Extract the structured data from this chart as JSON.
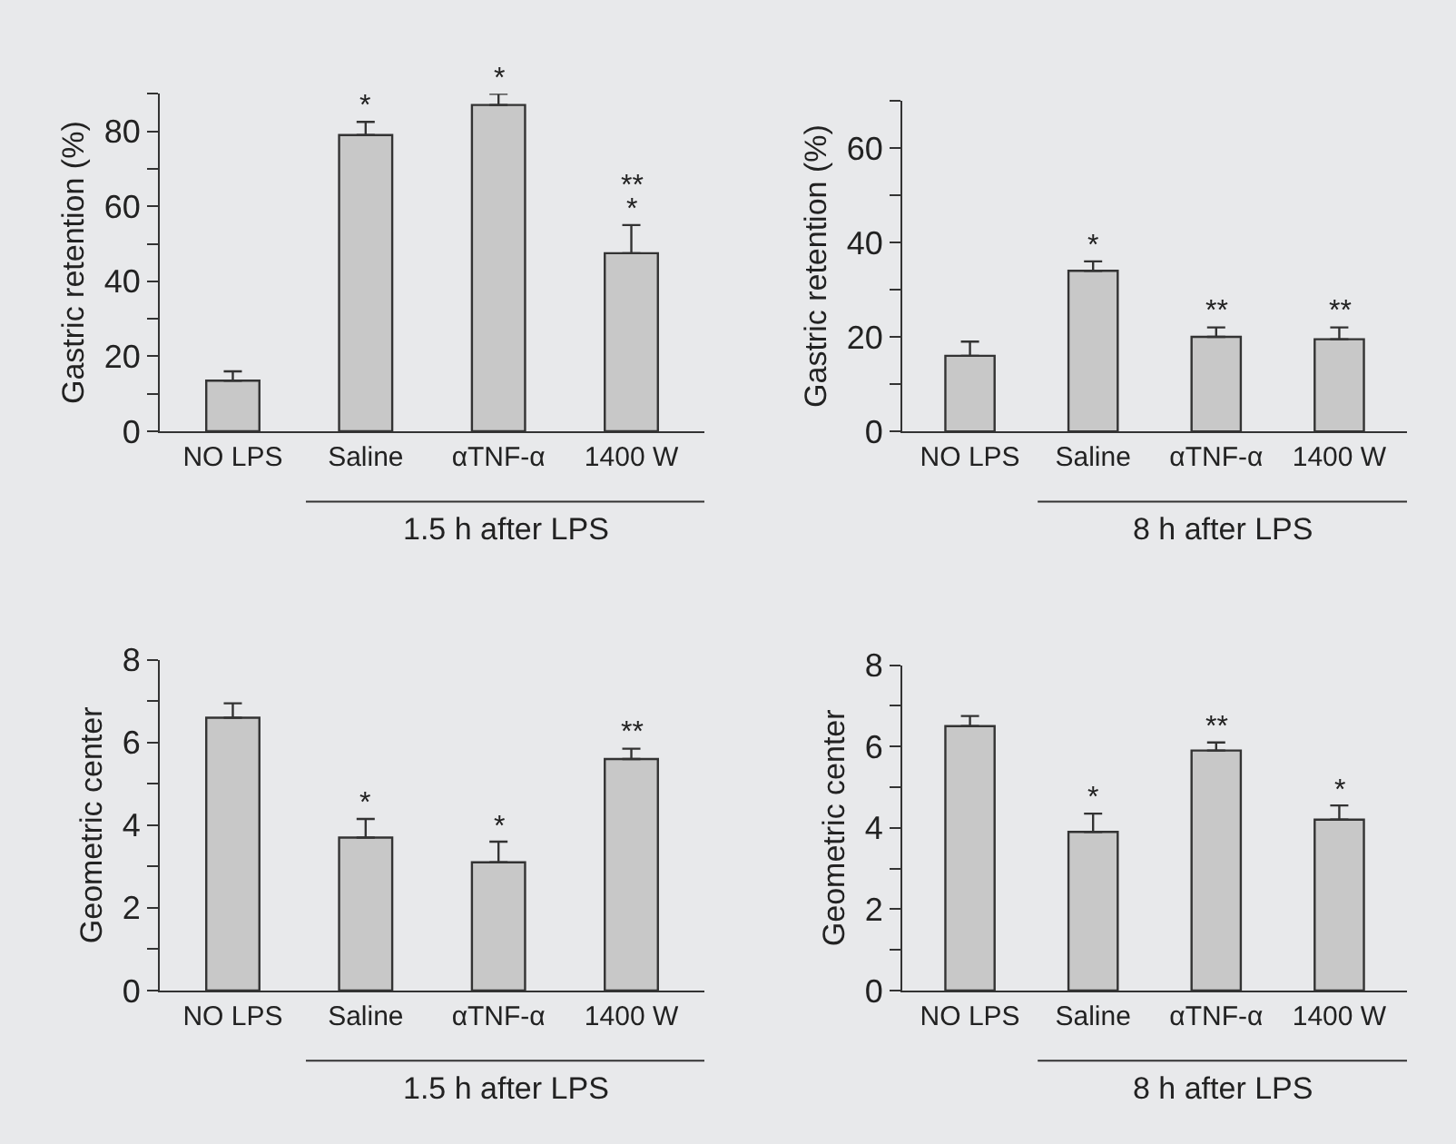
{
  "chart_data": [
    {
      "type": "bar",
      "categories": [
        "NO LPS",
        "Saline",
        "αTNF-α",
        "1400 W"
      ],
      "values": [
        13.5,
        79,
        87,
        47.5
      ],
      "errors": [
        [
          13.5,
          16
        ],
        [
          79,
          82.5
        ],
        [
          87,
          90
        ],
        [
          47.5,
          55
        ]
      ],
      "color": "#c8c8c8",
      "ylabel": "Gastric retention (%)",
      "xlabel": "1.5 h after LPS",
      "ylim": [
        0,
        90
      ],
      "yticks": [
        0,
        {
          "value": 10,
          "label": null
        },
        20,
        {
          "value": 30,
          "label": null
        },
        40,
        {
          "value": 50,
          "label": null
        },
        60,
        {
          "value": 70,
          "label": null
        },
        80,
        {
          "value": 90,
          "label": null
        }
      ],
      "annotations": [
        {
          "text": "*",
          "x": "Saline",
          "y": 82.5
        },
        {
          "text": "*",
          "x": "αTNF-α",
          "y": 90
        },
        {
          "text": "*",
          "x": "1400 W",
          "y": 55
        },
        {
          "text": "**",
          "x": "1400 W",
          "y": 55
        }
      ]
    },
    {
      "type": "bar",
      "categories": [
        "NO LPS",
        "Saline",
        "αTNF-α",
        "1400 W"
      ],
      "values": [
        16,
        34,
        20,
        19.5
      ],
      "errors": [
        [
          16,
          19
        ],
        [
          34,
          36
        ],
        [
          20,
          22
        ],
        [
          19.5,
          22
        ]
      ],
      "color": "#c8c8c8",
      "ylabel": "Gastric retention (%)",
      "xlabel": "8 h after LPS",
      "ylim": [
        0,
        70
      ],
      "yticks": [
        0,
        {
          "value": 10,
          "label": null
        },
        20,
        {
          "value": 30,
          "label": null
        },
        40,
        {
          "value": 50,
          "label": null
        },
        60,
        {
          "value": 70,
          "label": null
        }
      ],
      "annotations": [
        {
          "text": "*",
          "x": "Saline",
          "y": 36
        },
        {
          "text": "**",
          "x": "αTNF-α",
          "y": 22
        },
        {
          "text": "**",
          "x": "1400 W",
          "y": 22
        }
      ]
    },
    {
      "type": "bar",
      "categories": [
        "NO LPS",
        "Saline",
        "αTNF-α",
        "1400 W"
      ],
      "values": [
        6.6,
        3.7,
        3.1,
        5.6
      ],
      "errors": [
        [
          6.6,
          6.95
        ],
        [
          3.7,
          4.15
        ],
        [
          3.1,
          3.6
        ],
        [
          5.6,
          5.85
        ]
      ],
      "color": "#c8c8c8",
      "ylabel": "Geometric center",
      "xlabel": "1.5 h after LPS",
      "ylim": [
        0,
        8
      ],
      "yticks": [
        0,
        {
          "value": 1,
          "label": null
        },
        2,
        {
          "value": 3,
          "label": null
        },
        4,
        {
          "value": 5,
          "label": null
        },
        6,
        {
          "value": 7,
          "label": null
        },
        8
      ],
      "annotations": [
        {
          "text": "*",
          "x": "Saline",
          "y": 4.15
        },
        {
          "text": "*",
          "x": "αTNF-α",
          "y": 3.6
        },
        {
          "text": "**",
          "x": "1400 W",
          "y": 5.85
        }
      ]
    },
    {
      "type": "bar",
      "categories": [
        "NO LPS",
        "Saline",
        "αTNF-α",
        "1400 W"
      ],
      "values": [
        6.5,
        3.9,
        5.9,
        4.2
      ],
      "errors": [
        [
          6.5,
          6.75
        ],
        [
          3.9,
          4.35
        ],
        [
          5.9,
          6.1
        ],
        [
          4.2,
          4.55
        ]
      ],
      "color": "#c8c8c8",
      "ylabel": "Geometric center",
      "xlabel": "8 h after LPS",
      "ylim": [
        0,
        8
      ],
      "yticks": [
        0,
        {
          "value": 1,
          "label": null
        },
        2,
        {
          "value": 3,
          "label": null
        },
        4,
        {
          "value": 5,
          "label": null
        },
        6,
        {
          "value": 7,
          "label": null
        },
        8
      ],
      "annotations": [
        {
          "text": "*",
          "x": "Saline",
          "y": 4.35
        },
        {
          "text": "**",
          "x": "αTNF-α",
          "y": 6.1
        },
        {
          "text": "*",
          "x": "1400 W",
          "y": 4.55
        }
      ]
    }
  ]
}
